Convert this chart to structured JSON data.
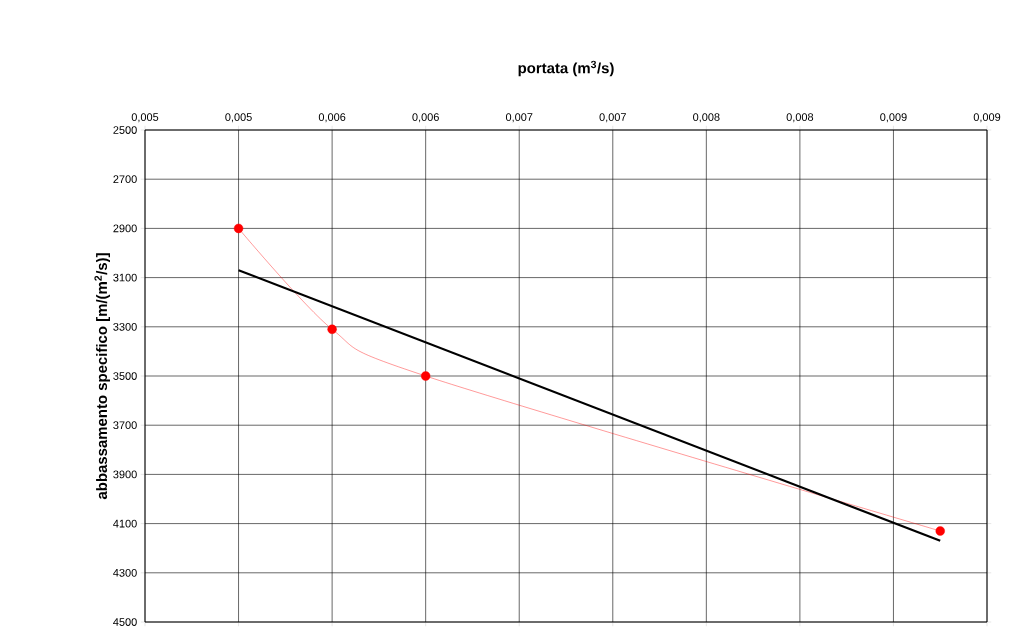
{
  "chart_data": {
    "type": "line",
    "xlabel": "portata (m$^{3}$/s)",
    "ylabel": "abbassamento specifico [m/(m$^{2}$/s)]",
    "xlim": [
      0.0045,
      0.009
    ],
    "xticks": [
      {
        "value": 0.0045,
        "label": "0,005"
      },
      {
        "value": 0.005,
        "label": "0,005"
      },
      {
        "value": 0.0055,
        "label": "0,006"
      },
      {
        "value": 0.006,
        "label": "0,006"
      },
      {
        "value": 0.0065,
        "label": "0,007"
      },
      {
        "value": 0.007,
        "label": "0,007"
      },
      {
        "value": 0.0075,
        "label": "0,008"
      },
      {
        "value": 0.008,
        "label": "0,008"
      },
      {
        "value": 0.0085,
        "label": "0,009"
      },
      {
        "value": 0.009,
        "label": "0,009"
      }
    ],
    "ylim": [
      4500,
      2500
    ],
    "yticks": [
      2500,
      2700,
      2900,
      3100,
      3300,
      3500,
      3700,
      3900,
      4100,
      4300,
      4500
    ],
    "grid": true,
    "series": [
      {
        "color": "#ff0000",
        "marker": "circle",
        "x": [
          0.005,
          0.0055,
          0.006,
          0.00875
        ],
        "values": [
          2900,
          3310,
          3500,
          4130
        ]
      },
      {
        "color": "#000000",
        "marker": "none",
        "x": [
          0.005,
          0.00875
        ],
        "values": [
          3070,
          4170
        ]
      }
    ]
  }
}
